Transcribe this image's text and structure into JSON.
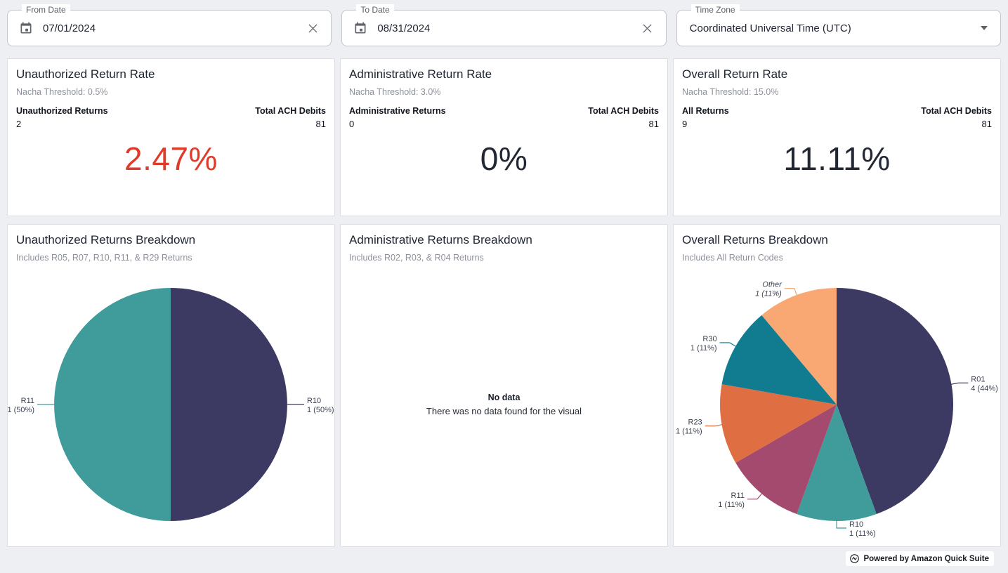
{
  "filters": {
    "from_date": {
      "label": "From Date",
      "value": "07/01/2024"
    },
    "to_date": {
      "label": "To Date",
      "value": "08/31/2024"
    },
    "time_zone": {
      "label": "Time Zone",
      "value": "Coordinated Universal Time (UTC)"
    }
  },
  "kpis": [
    {
      "title": "Unauthorized Return Rate",
      "threshold": "Nacha Threshold: 0.5%",
      "left_label": "Unauthorized Returns",
      "left_value": "2",
      "right_label": "Total ACH Debits",
      "right_value": "81",
      "rate": "2.47%",
      "rate_color": "#de3b2b"
    },
    {
      "title": "Administrative Return Rate",
      "threshold": "Nacha Threshold: 3.0%",
      "left_label": "Administrative Returns",
      "left_value": "0",
      "right_label": "Total ACH Debits",
      "right_value": "81",
      "rate": "0%",
      "rate_color": "#212733"
    },
    {
      "title": "Overall Return Rate",
      "threshold": "Nacha Threshold: 15.0%",
      "left_label": "All Returns",
      "left_value": "9",
      "right_label": "Total ACH Debits",
      "right_value": "81",
      "rate": "11.11%",
      "rate_color": "#212733"
    }
  ],
  "breakdowns": [
    {
      "title": "Unauthorized Returns Breakdown",
      "subtitle": "Includes R05, R07, R10, R11, & R29 Returns"
    },
    {
      "title": "Administrative Returns Breakdown",
      "subtitle": "Includes R02, R03, & R04 Returns",
      "no_data": {
        "title": "No data",
        "message": "There was no data found for the visual"
      }
    },
    {
      "title": "Overall Returns Breakdown",
      "subtitle": "Includes All Return Codes"
    }
  ],
  "chart_data": [
    {
      "type": "pie",
      "title": "Unauthorized Returns Breakdown",
      "legend_position": "none",
      "label_format": "code, count (percent)",
      "slices": [
        {
          "label": "R10",
          "value": 1,
          "percent": 50,
          "display": "1 (50%)",
          "color": "#3c3a62"
        },
        {
          "label": "R11",
          "value": 1,
          "percent": 50,
          "display": "1 (50%)",
          "color": "#409c9b"
        }
      ]
    },
    {
      "type": "pie",
      "title": "Overall Returns Breakdown",
      "legend_position": "none",
      "label_format": "code, count (percent)",
      "slices": [
        {
          "label": "R01",
          "value": 4,
          "percent": 44,
          "display": "4 (44%)",
          "color": "#3c3a62"
        },
        {
          "label": "R10",
          "value": 1,
          "percent": 11,
          "display": "1 (11%)",
          "color": "#409c9b"
        },
        {
          "label": "R11",
          "value": 1,
          "percent": 11,
          "display": "1 (11%)",
          "color": "#a44a6e"
        },
        {
          "label": "R23",
          "value": 1,
          "percent": 11,
          "display": "1 (11%)",
          "color": "#df6f43"
        },
        {
          "label": "R30",
          "value": 1,
          "percent": 11,
          "display": "1 (11%)",
          "color": "#117b90"
        },
        {
          "label": "Other",
          "value": 1,
          "percent": 11,
          "display": "1 (11%)",
          "color": "#f9a873",
          "italic": true
        }
      ]
    }
  ],
  "footer": {
    "label": "Powered by Amazon Quick Suite"
  }
}
